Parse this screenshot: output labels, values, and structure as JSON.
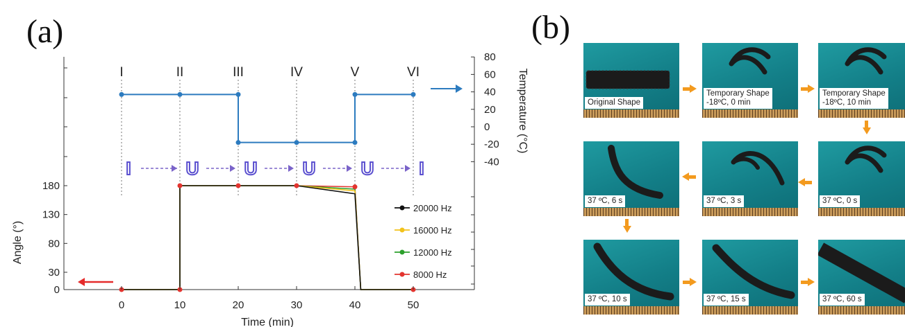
{
  "panel_a_label": "(a)",
  "panel_b_label": "(b)",
  "chart_data": {
    "type": "line",
    "xlabel": "Time (min)",
    "ylabel_left": "Angle (°)",
    "ylabel_right": "Temperature (°C)",
    "x_ticks": [
      0,
      10,
      20,
      30,
      40,
      50
    ],
    "y_left_ticks": [
      0,
      30,
      80,
      130,
      180
    ],
    "y_right_ticks": [
      80,
      60,
      40,
      20,
      0,
      -20,
      -40
    ],
    "xlim": [
      -10,
      60
    ],
    "ylim_left": [
      0,
      180
    ],
    "stage_labels": [
      "I",
      "II",
      "III",
      "IV",
      "V",
      "VI"
    ],
    "stage_x": [
      0,
      10,
      20,
      30,
      40,
      50
    ],
    "shape_letters": [
      "I",
      "U",
      "U",
      "U",
      "U",
      "I"
    ],
    "colors": {
      "temperature": "#2c7bbf",
      "angle_axis_arrow": "#e52b2b",
      "shape_letters": "#5a4fcf",
      "stage_arrows": "#7a63c9"
    },
    "temperature_series": {
      "points": [
        [
          0,
          37
        ],
        [
          10,
          37
        ],
        [
          20,
          37
        ],
        [
          20,
          -18
        ],
        [
          30,
          -18
        ],
        [
          40,
          -18
        ],
        [
          40,
          37
        ],
        [
          50,
          37
        ]
      ],
      "markers_x": [
        0,
        10,
        20,
        20,
        30,
        40,
        40,
        50
      ]
    },
    "series": [
      {
        "name": "20000 Hz",
        "color": "#111111",
        "x": [
          0,
          10,
          10,
          20,
          30,
          40,
          41,
          50
        ],
        "y": [
          0,
          0,
          180,
          180,
          180,
          166,
          0,
          0
        ]
      },
      {
        "name": "16000 Hz",
        "color": "#f2c21b",
        "x": [
          0,
          10,
          10,
          20,
          30,
          40,
          41,
          50
        ],
        "y": [
          0,
          0,
          180,
          180,
          180,
          171,
          0,
          0
        ]
      },
      {
        "name": "12000 Hz",
        "color": "#2ca02c",
        "x": [
          0,
          10,
          10,
          20,
          30,
          40,
          41,
          50
        ],
        "y": [
          0,
          0,
          180,
          180,
          180,
          174,
          0,
          0
        ]
      },
      {
        "name": "8000 Hz",
        "color": "#e3342f",
        "x": [
          0,
          10,
          10,
          20,
          30,
          40,
          41,
          50
        ],
        "y": [
          0,
          0,
          180,
          180,
          180,
          178,
          0,
          0
        ]
      }
    ],
    "legend_placement": "right"
  },
  "photos": [
    {
      "caption": "Original Shape",
      "sample": "flat"
    },
    {
      "caption": "Temporary Shape\n-18ºC, 0 min",
      "sample": "u"
    },
    {
      "caption": "Temporary Shape\n-18ºC, 10 min",
      "sample": "u"
    },
    {
      "caption": "37 ºC, 6 s",
      "sample": "curve"
    },
    {
      "caption": "37 ºC, 3 s",
      "sample": "hook"
    },
    {
      "caption": "37 ºC, 0 s",
      "sample": "u"
    },
    {
      "caption": "37 ºC, 10 s",
      "sample": "curve2"
    },
    {
      "caption": "37 ºC, 15 s",
      "sample": "curve2"
    },
    {
      "caption": "37 ºC, 60 s",
      "sample": "flat2"
    }
  ]
}
